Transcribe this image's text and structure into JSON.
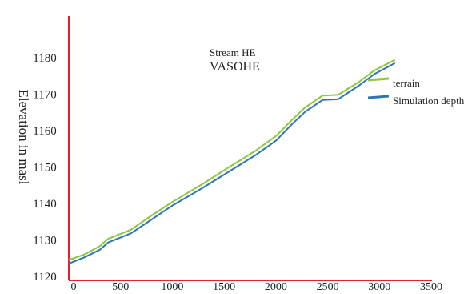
{
  "chart_data": {
    "type": "line",
    "title": "Stream HE",
    "subtitle": "VASOHE",
    "xlabel": "",
    "ylabel": "Elevation in masl",
    "xlim": [
      0,
      3500
    ],
    "ylim": [
      1120,
      1190
    ],
    "x_ticks": [
      "0",
      "500",
      "1000",
      "1500",
      "2000",
      "2500",
      "3000",
      "3500"
    ],
    "y_ticks": [
      "1120",
      "1130",
      "1140",
      "1150",
      "1160",
      "1170",
      "1180"
    ],
    "grid": false,
    "legend_position": "right",
    "series": [
      {
        "name": "terrain",
        "color": "#8dc63f",
        "points": [
          [
            0,
            1124.5
          ],
          [
            150,
            1126
          ],
          [
            300,
            1128.3
          ],
          [
            380,
            1130.3
          ],
          [
            600,
            1132.8
          ],
          [
            800,
            1136.7
          ],
          [
            1000,
            1140.4
          ],
          [
            1300,
            1145.5
          ],
          [
            1550,
            1150
          ],
          [
            1800,
            1154.4
          ],
          [
            2000,
            1158.5
          ],
          [
            2150,
            1162.8
          ],
          [
            2280,
            1166.3
          ],
          [
            2450,
            1169.6
          ],
          [
            2600,
            1169.8
          ],
          [
            2800,
            1173.3
          ],
          [
            2950,
            1176.5
          ],
          [
            3150,
            1179.4
          ]
        ]
      },
      {
        "name": "Simulation depth",
        "color": "#2e75b6",
        "points": [
          [
            0,
            1123.5
          ],
          [
            150,
            1125.2
          ],
          [
            300,
            1127.3
          ],
          [
            380,
            1129.3
          ],
          [
            600,
            1131.8
          ],
          [
            800,
            1135.6
          ],
          [
            1000,
            1139.4
          ],
          [
            1300,
            1144.4
          ],
          [
            1550,
            1148.8
          ],
          [
            1800,
            1153.2
          ],
          [
            2000,
            1157.2
          ],
          [
            2150,
            1161.6
          ],
          [
            2280,
            1165.1
          ],
          [
            2450,
            1168.4
          ],
          [
            2600,
            1168.6
          ],
          [
            2800,
            1172.3
          ],
          [
            2950,
            1175.5
          ],
          [
            3150,
            1178.5
          ]
        ]
      }
    ]
  }
}
